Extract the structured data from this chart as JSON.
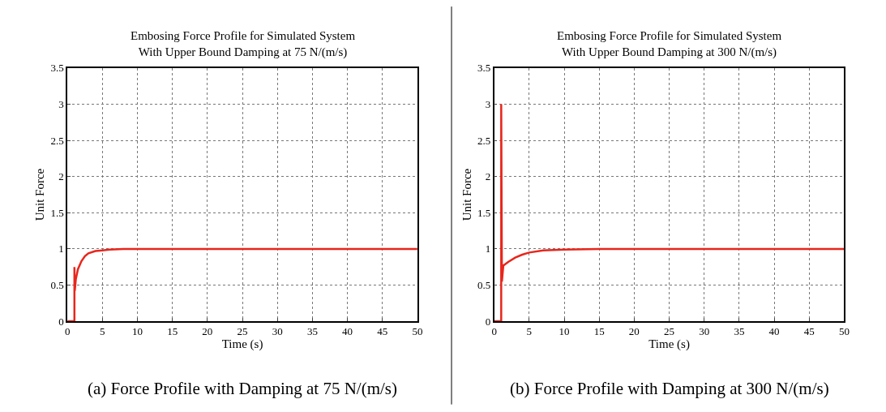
{
  "chart_data": [
    {
      "type": "line",
      "title": "Embosing Force Profile for Simulated System\nWith Upper Bound Damping at 75 N/(m/s)",
      "xlabel": "Time (s)",
      "ylabel": "Unit Force",
      "x": [
        0,
        1,
        1,
        1.05,
        1.2,
        1.5,
        2,
        2.5,
        3,
        4,
        5,
        6,
        8,
        10,
        50
      ],
      "series": [
        {
          "color": "#e8261c",
          "values": [
            0,
            0,
            0.75,
            0.42,
            0.58,
            0.72,
            0.83,
            0.9,
            0.94,
            0.97,
            0.98,
            0.99,
            1,
            1,
            1
          ]
        }
      ],
      "xlim": [
        0,
        50
      ],
      "xticks": [
        0,
        5,
        10,
        15,
        20,
        25,
        30,
        35,
        40,
        45,
        50
      ],
      "ylim": [
        0,
        3.5
      ],
      "yticks": [
        0,
        0.5,
        1,
        1.5,
        2,
        2.5,
        3,
        3.5
      ],
      "grid": true,
      "line_style": "solid",
      "annotations": [
        "(a) Force Profile with Damping at 75 N/(m/s)"
      ]
    },
    {
      "type": "line",
      "title": "Embosing Force Profile for Simulated System\nWith Upper Bound Damping at 300 N/(m/s)",
      "xlabel": "Time (s)",
      "ylabel": "Unit Force",
      "x": [
        0,
        1,
        1,
        1.1,
        1.3,
        2,
        3,
        4,
        5,
        7,
        10,
        15,
        50
      ],
      "series": [
        {
          "color": "#e8261c",
          "values": [
            0,
            0,
            3,
            0.55,
            0.77,
            0.82,
            0.88,
            0.92,
            0.95,
            0.98,
            0.99,
            1,
            1
          ]
        }
      ],
      "xlim": [
        0,
        50
      ],
      "xticks": [
        0,
        5,
        10,
        15,
        20,
        25,
        30,
        35,
        40,
        45,
        50
      ],
      "ylim": [
        0,
        3.5
      ],
      "yticks": [
        0,
        0.5,
        1,
        1.5,
        2,
        2.5,
        3,
        3.5
      ],
      "grid": true,
      "line_style": "solid",
      "annotations": [
        "(b) Force Profile with Damping at 300 N/(m/s)"
      ]
    }
  ]
}
